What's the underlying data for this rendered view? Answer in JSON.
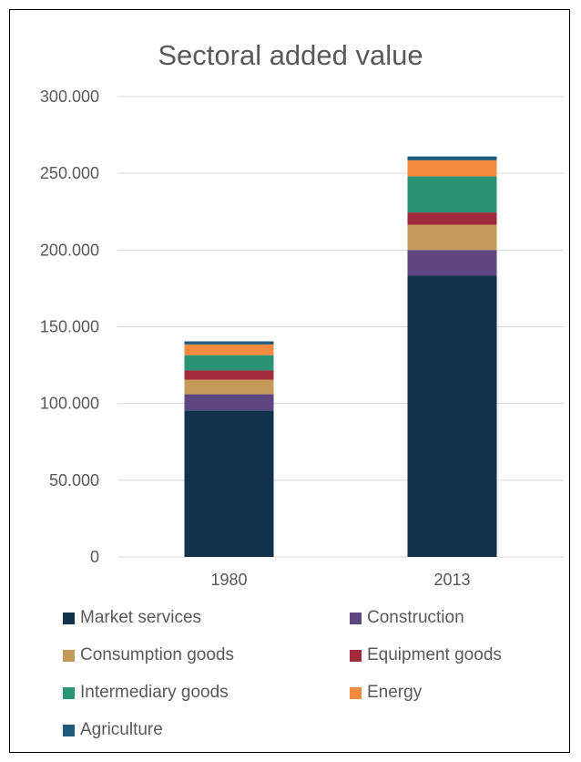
{
  "chart_data": {
    "type": "bar",
    "stacked": true,
    "title": "Sectoral added value",
    "xlabel": "",
    "ylabel": "",
    "categories": [
      "1980",
      "2013"
    ],
    "ylim": [
      0,
      300000
    ],
    "yticks": [
      0,
      50000,
      100000,
      150000,
      200000,
      250000,
      300000
    ],
    "ytick_labels": [
      "0",
      "50.000",
      "100.000",
      "150.000",
      "200.000",
      "250.000",
      "300.000"
    ],
    "grid": true,
    "legend_position": "bottom",
    "series": [
      {
        "name": "Market services",
        "color": "#13324d",
        "values": [
          95500,
          183500
        ]
      },
      {
        "name": "Construction",
        "color": "#5e4680",
        "values": [
          10500,
          16500
        ]
      },
      {
        "name": "Consumption goods",
        "color": "#c39a5a",
        "values": [
          9500,
          16500
        ]
      },
      {
        "name": "Equipment goods",
        "color": "#a32a3c",
        "values": [
          6000,
          8000
        ]
      },
      {
        "name": "Intermediary goods",
        "color": "#2a9474",
        "values": [
          10000,
          23500
        ]
      },
      {
        "name": "Energy",
        "color": "#f58b3f",
        "values": [
          7000,
          10500
        ]
      },
      {
        "name": "Agriculture",
        "color": "#1f5a7a",
        "values": [
          2000,
          2500
        ]
      }
    ]
  }
}
